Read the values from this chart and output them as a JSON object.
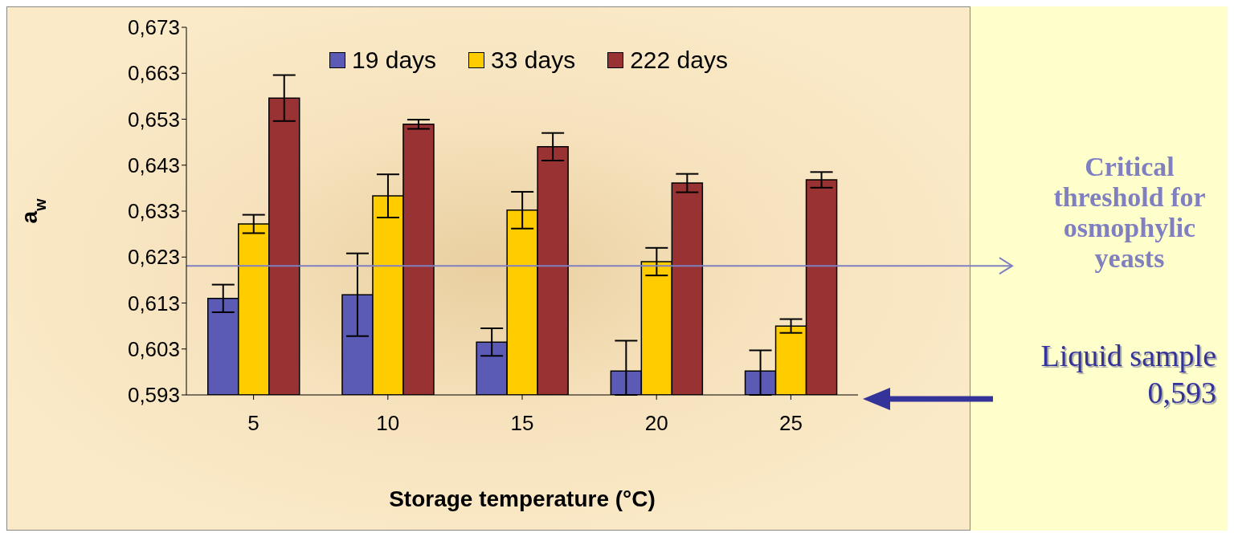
{
  "chart_data": {
    "type": "bar",
    "xlabel": "Storage temperature (°C)",
    "ylabel": "a$_{w}$",
    "categories": [
      "5",
      "10",
      "15",
      "20",
      "25"
    ],
    "series": [
      {
        "name": "19 days",
        "color": "#5b5bb5",
        "values": [
          0.614,
          0.6148,
          0.6045,
          0.5982,
          0.5982
        ],
        "errors": [
          0.003,
          0.009,
          0.003,
          [
            0.593,
            0.6048
          ],
          [
            0.593,
            0.6027
          ]
        ]
      },
      {
        "name": "33 days",
        "color": "#ffcc00",
        "values": [
          0.6302,
          0.6363,
          0.6332,
          0.622,
          0.608
        ],
        "errors": [
          0.002,
          0.0047,
          0.004,
          0.003,
          0.0015
        ]
      },
      {
        "name": "222 days",
        "color": "#993333",
        "values": [
          0.6576,
          0.6519,
          0.647,
          0.6391,
          0.6398
        ],
        "errors": [
          0.005,
          0.001,
          0.003,
          0.002,
          0.0017
        ]
      }
    ],
    "ylim": [
      0.593,
      0.673
    ],
    "yticks": [
      {
        "value": 0.593,
        "label": "0,593"
      },
      {
        "value": 0.603,
        "label": "0,603"
      },
      {
        "value": 0.613,
        "label": "0,613"
      },
      {
        "value": 0.623,
        "label": "0,623"
      },
      {
        "value": 0.633,
        "label": "0,633"
      },
      {
        "value": 0.643,
        "label": "0,643"
      },
      {
        "value": 0.653,
        "label": "0,653"
      },
      {
        "value": 0.663,
        "label": "0,663"
      },
      {
        "value": 0.673,
        "label": "0,673"
      }
    ],
    "ref_lines": [
      {
        "axis": "y",
        "value": 0.6211,
        "label": "Critical threshold for osmophylic yeasts",
        "color": "#8080c0"
      }
    ],
    "annotations": [
      "Liquid sample 0,593"
    ],
    "legend": "top",
    "grid": false
  }
}
